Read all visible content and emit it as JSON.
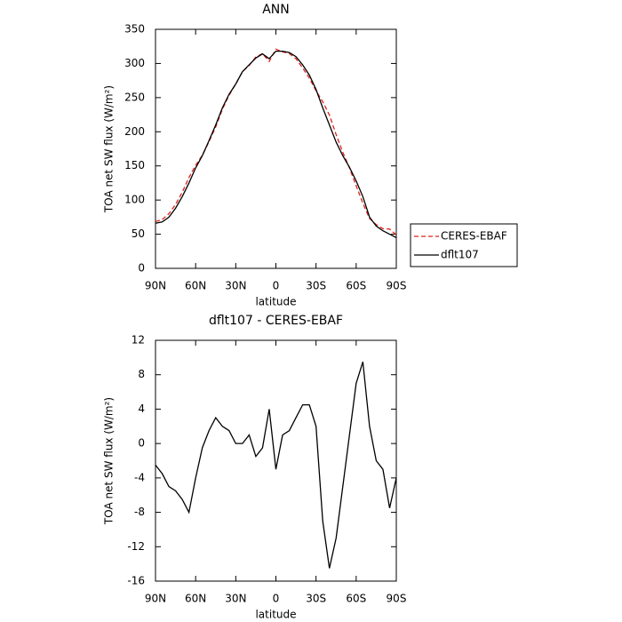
{
  "chart_data": [
    {
      "type": "line",
      "title": "ANN",
      "xlabel": "latitude",
      "ylabel": "TOA net SW flux (W/m²)",
      "x": [
        90,
        85,
        80,
        75,
        70,
        65,
        60,
        55,
        50,
        45,
        40,
        35,
        30,
        25,
        20,
        15,
        10,
        5,
        0,
        -5,
        -10,
        -15,
        -20,
        -25,
        -30,
        -35,
        -40,
        -45,
        -50,
        -55,
        -60,
        -65,
        -70,
        -75,
        -80,
        -85,
        -90
      ],
      "series": [
        {
          "name": "CERES-EBAF",
          "color": "#e0201b",
          "dashed": true,
          "values": [
            68.5,
            71.5,
            80,
            93.5,
            111.5,
            133,
            151,
            165.5,
            185.5,
            207,
            233,
            253.5,
            270,
            288,
            297,
            309.5,
            314.5,
            303,
            321,
            317,
            314.5,
            307,
            293.5,
            278.5,
            260,
            244,
            224.5,
            196,
            170,
            147,
            121,
            95.5,
            73,
            64,
            58,
            57.5,
            49
          ]
        },
        {
          "name": "dflt107",
          "color": "#000000",
          "dashed": false,
          "values": [
            66,
            68,
            75,
            88,
            105,
            125,
            147,
            165,
            187,
            210,
            235,
            255,
            270,
            288,
            298,
            308,
            314,
            307,
            318,
            318,
            316,
            310,
            298,
            283,
            262,
            235,
            210,
            185,
            165,
            148,
            128,
            105,
            75,
            62,
            55,
            50,
            45
          ]
        }
      ],
      "xlim": [
        90,
        -90
      ],
      "xticks": [
        {
          "value": 90,
          "label": "90N"
        },
        {
          "value": 60,
          "label": "60N"
        },
        {
          "value": 30,
          "label": "30N"
        },
        0,
        {
          "value": -30,
          "label": "30S"
        },
        {
          "value": -60,
          "label": "60S"
        },
        {
          "value": -90,
          "label": "90S"
        }
      ],
      "ylim": [
        0,
        350
      ],
      "yticks": [
        0,
        50,
        100,
        150,
        200,
        250,
        300,
        350
      ],
      "legend": "right"
    },
    {
      "type": "line",
      "title": "dflt107 - CERES-EBAF",
      "xlabel": "latitude",
      "ylabel": "TOA net SW flux (W/m²)",
      "x": [
        90,
        85,
        80,
        75,
        70,
        65,
        60,
        55,
        50,
        45,
        40,
        35,
        30,
        25,
        20,
        15,
        10,
        5,
        0,
        -5,
        -10,
        -15,
        -20,
        -25,
        -30,
        -35,
        -40,
        -45,
        -50,
        -55,
        -60,
        -65,
        -70,
        -75,
        -80,
        -85,
        -90
      ],
      "series": [
        {
          "color": "#000000",
          "dashed": false,
          "values": [
            -2.5,
            -3.5,
            -5,
            -5.5,
            -6.5,
            -8,
            -4,
            -0.5,
            1.5,
            3,
            2,
            1.5,
            0,
            0,
            1,
            -1.5,
            -0.5,
            4,
            -3,
            1,
            1.5,
            3,
            4.5,
            4.5,
            2,
            -9,
            -14.5,
            -11,
            -5,
            1,
            7,
            9.5,
            2,
            -2,
            -3,
            -7.5,
            -4
          ]
        }
      ],
      "xlim": [
        90,
        -90
      ],
      "xticks": [
        {
          "value": 90,
          "label": "90N"
        },
        {
          "value": 60,
          "label": "60N"
        },
        {
          "value": 30,
          "label": "30N"
        },
        0,
        {
          "value": -30,
          "label": "30S"
        },
        {
          "value": -60,
          "label": "60S"
        },
        {
          "value": -90,
          "label": "90S"
        }
      ],
      "ylim": [
        -16,
        12
      ],
      "yticks": [
        -16,
        -12,
        -8,
        -4,
        0,
        4,
        8,
        12
      ]
    }
  ]
}
